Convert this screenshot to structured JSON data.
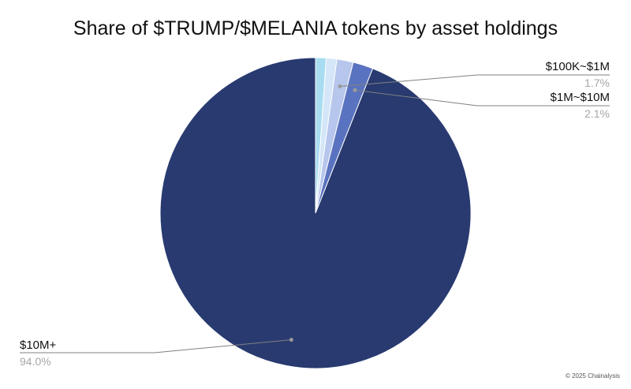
{
  "chart_data": {
    "type": "pie",
    "title": "Share of $TRUMP/$MELANIA tokens by asset holdings",
    "slices": [
      {
        "label": "$10M+",
        "value": 94.0,
        "value_label": "94.0%",
        "color": "#283a70",
        "labeled": true
      },
      {
        "label": "$1M~$10M",
        "value": 2.1,
        "value_label": "2.1%",
        "color": "#5a73c0",
        "labeled": true
      },
      {
        "label": "$100K~$1M",
        "value": 1.7,
        "value_label": "1.7%",
        "color": "#b7c6ec",
        "labeled": true
      },
      {
        "label": "",
        "value": 1.1,
        "value_label": "",
        "color": "#d4e6f8",
        "labeled": false
      },
      {
        "label": "",
        "value": 1.1,
        "value_label": "",
        "color": "#a9dcf0",
        "labeled": false
      }
    ],
    "start_angle": "top",
    "direction": "counterclockwise",
    "label_color": "#111111",
    "value_color": "#a6a6a6",
    "leader_color": "#808080"
  },
  "footer": {
    "copyright": "© 2025 Chainalysis"
  }
}
